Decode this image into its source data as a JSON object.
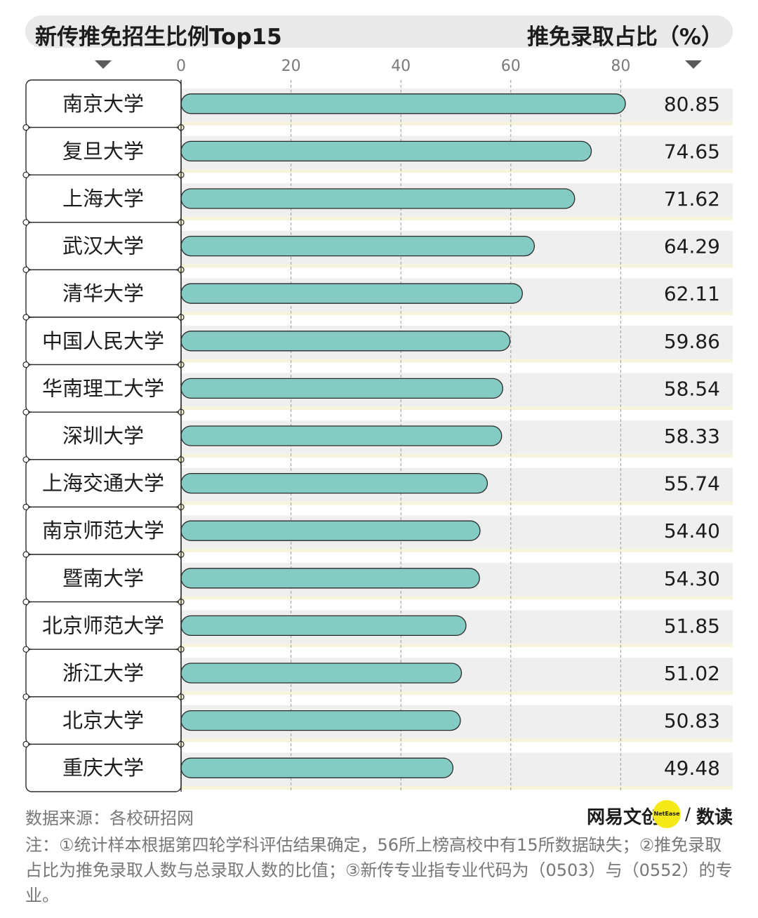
{
  "header": {
    "title": "新传推免招生比例Top15",
    "unit_label": "推免录取占比（%）"
  },
  "colors": {
    "bar_fill": "#84cbc4",
    "bar_stroke": "#2a2a2a",
    "row_band": "#efefef",
    "gridline": "#999999",
    "title_bg": "#e9e9e9",
    "accent_yellow": "#f5e918"
  },
  "chart_data": {
    "type": "bar",
    "orientation": "horizontal",
    "title": "新传推免招生比例Top15",
    "xlabel": "推免录取占比（%）",
    "ylabel": "",
    "xlim": [
      0,
      80
    ],
    "xticks": [
      0,
      20,
      40,
      60,
      80
    ],
    "grid": true,
    "categories": [
      "南京大学",
      "复旦大学",
      "上海大学",
      "武汉大学",
      "清华大学",
      "中国人民大学",
      "华南理工大学",
      "深圳大学",
      "上海交通大学",
      "南京师范大学",
      "暨南大学",
      "北京师范大学",
      "浙江大学",
      "北京大学",
      "重庆大学"
    ],
    "values": [
      80.85,
      74.65,
      71.62,
      64.29,
      62.11,
      59.86,
      58.54,
      58.33,
      55.74,
      54.4,
      54.3,
      51.85,
      51.02,
      50.83,
      49.48
    ],
    "value_labels": [
      "80.85",
      "74.65",
      "71.62",
      "64.29",
      "62.11",
      "59.86",
      "58.54",
      "58.33",
      "55.74",
      "54.40",
      "54.30",
      "51.85",
      "51.02",
      "50.83",
      "49.48"
    ]
  },
  "footer": {
    "source": "数据来源：各校研招网",
    "logo_main": "网易文创",
    "logo_dot": "NetEase",
    "logo_slash": "/",
    "logo_sub": "数读",
    "notes": "注：①统计样本根据第四轮学科评估结果确定，56所上榜高校中有15所数据缺失；②推免录取占比为推免录取人数与总录取人数的比值；③新传专业指专业代码为（0503）与（0552）的专业。"
  }
}
